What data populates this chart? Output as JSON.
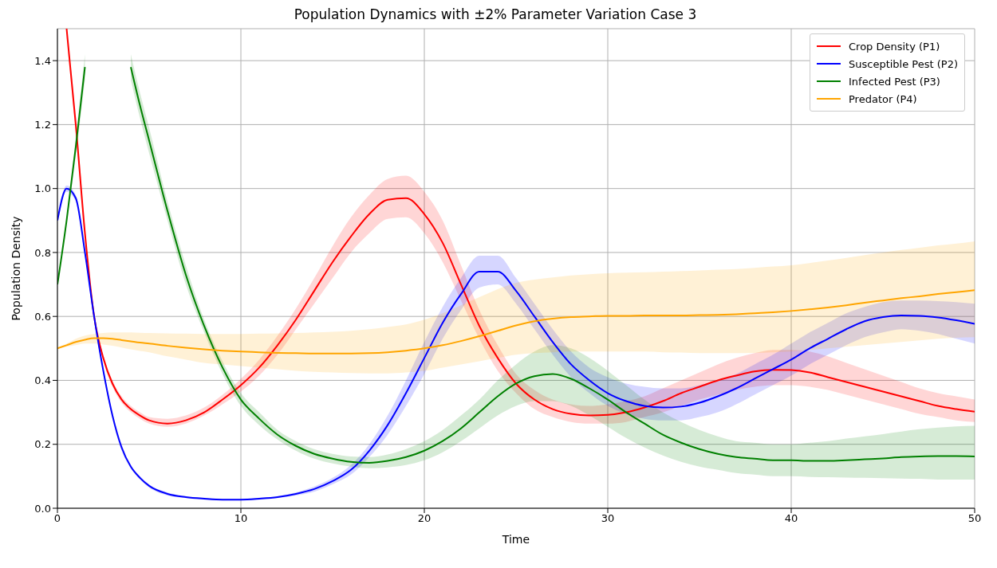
{
  "chart_data": {
    "type": "line",
    "title": "Population Dynamics with ±2% Parameter Variation Case 3",
    "xlabel": "Time",
    "ylabel": "Population Density",
    "x": [
      0,
      0.5,
      1,
      1.5,
      2,
      2.5,
      3,
      3.5,
      4,
      4.5,
      5,
      6,
      7,
      8,
      9,
      10,
      11,
      12,
      13,
      14,
      15,
      16,
      17,
      18,
      19,
      20,
      21,
      22,
      23,
      24,
      25,
      26,
      27,
      28,
      29,
      30,
      31,
      32,
      33,
      34,
      35,
      36,
      37,
      38,
      39,
      40,
      41,
      42,
      43,
      44,
      45,
      46,
      47,
      48,
      49,
      50
    ],
    "xlim": [
      0,
      50
    ],
    "xticks": [
      0,
      10,
      20,
      30,
      40,
      50
    ],
    "ylim": [
      0,
      1.5
    ],
    "yticks": [
      {
        "value": 0,
        "label": "0.0"
      },
      {
        "value": 0.2,
        "label": "0.2"
      },
      {
        "value": 0.4,
        "label": "0.4"
      },
      {
        "value": 0.6,
        "label": "0.6"
      },
      {
        "value": 0.8,
        "label": "0.8"
      },
      {
        "value": 1.0,
        "label": "1.0"
      },
      {
        "value": 1.2,
        "label": "1.2"
      },
      {
        "value": 1.4,
        "label": "1.4"
      }
    ],
    "grid": true,
    "legend": "top right",
    "marker": "none",
    "line_style": "solid",
    "series": [
      {
        "name": "Crop Density (P1)",
        "color": "#ff0000",
        "values": [
          null,
          1.5,
          1.2,
          0.86,
          0.6,
          0.47,
          0.39,
          0.34,
          0.31,
          0.29,
          0.275,
          0.265,
          0.275,
          0.3,
          0.34,
          0.385,
          0.44,
          0.51,
          0.59,
          0.68,
          0.77,
          0.85,
          0.92,
          0.965,
          0.97,
          0.92,
          0.83,
          0.7,
          0.57,
          0.47,
          0.39,
          0.34,
          0.31,
          0.295,
          0.29,
          0.292,
          0.3,
          0.315,
          0.335,
          0.36,
          0.38,
          0.4,
          0.415,
          0.428,
          0.433,
          0.432,
          0.425,
          0.41,
          0.395,
          0.38,
          0.365,
          0.35,
          0.335,
          0.32,
          0.31,
          0.302
        ],
        "lower": [
          null,
          1.47,
          1.17,
          0.84,
          0.59,
          0.46,
          0.38,
          0.33,
          0.3,
          0.28,
          0.265,
          0.255,
          0.265,
          0.29,
          0.325,
          0.365,
          0.415,
          0.48,
          0.56,
          0.64,
          0.72,
          0.8,
          0.86,
          0.905,
          0.91,
          0.86,
          0.77,
          0.65,
          0.53,
          0.43,
          0.36,
          0.31,
          0.285,
          0.27,
          0.265,
          0.265,
          0.27,
          0.285,
          0.3,
          0.32,
          0.34,
          0.355,
          0.37,
          0.38,
          0.385,
          0.385,
          0.38,
          0.37,
          0.355,
          0.34,
          0.325,
          0.31,
          0.295,
          0.285,
          0.275,
          0.27
        ],
        "upper": [
          null,
          1.5,
          1.23,
          0.88,
          0.61,
          0.48,
          0.4,
          0.35,
          0.32,
          0.3,
          0.285,
          0.28,
          0.29,
          0.315,
          0.355,
          0.405,
          0.465,
          0.54,
          0.625,
          0.72,
          0.82,
          0.91,
          0.98,
          1.03,
          1.04,
          0.99,
          0.9,
          0.76,
          0.62,
          0.51,
          0.42,
          0.37,
          0.34,
          0.325,
          0.32,
          0.325,
          0.335,
          0.35,
          0.375,
          0.4,
          0.425,
          0.45,
          0.47,
          0.485,
          0.495,
          0.495,
          0.49,
          0.475,
          0.455,
          0.435,
          0.415,
          0.395,
          0.375,
          0.36,
          0.35,
          0.34
        ]
      },
      {
        "name": "Susceptible Pest (P2)",
        "color": "#0000ff",
        "values": [
          0.9,
          1.0,
          0.97,
          0.8,
          0.6,
          0.43,
          0.29,
          0.19,
          0.13,
          0.095,
          0.07,
          0.045,
          0.035,
          0.03,
          0.027,
          0.027,
          0.03,
          0.035,
          0.045,
          0.06,
          0.085,
          0.12,
          0.18,
          0.26,
          0.36,
          0.47,
          0.58,
          0.67,
          0.74,
          0.74,
          0.68,
          0.6,
          0.52,
          0.45,
          0.4,
          0.36,
          0.335,
          0.32,
          0.315,
          0.318,
          0.33,
          0.35,
          0.375,
          0.405,
          0.435,
          0.465,
          0.5,
          0.53,
          0.56,
          0.585,
          0.598,
          0.603,
          0.602,
          0.597,
          0.588,
          0.577
        ],
        "lower": [
          0.9,
          0.99,
          0.96,
          0.79,
          0.59,
          0.42,
          0.28,
          0.18,
          0.125,
          0.09,
          0.065,
          0.04,
          0.032,
          0.027,
          0.025,
          0.025,
          0.027,
          0.032,
          0.04,
          0.052,
          0.075,
          0.105,
          0.16,
          0.23,
          0.32,
          0.42,
          0.53,
          0.62,
          0.69,
          0.7,
          0.64,
          0.56,
          0.48,
          0.41,
          0.36,
          0.32,
          0.295,
          0.28,
          0.275,
          0.275,
          0.285,
          0.3,
          0.325,
          0.355,
          0.385,
          0.415,
          0.45,
          0.48,
          0.51,
          0.535,
          0.55,
          0.56,
          0.555,
          0.545,
          0.53,
          0.515
        ],
        "upper": [
          0.9,
          1.01,
          0.98,
          0.81,
          0.61,
          0.44,
          0.3,
          0.2,
          0.135,
          0.1,
          0.075,
          0.05,
          0.038,
          0.033,
          0.03,
          0.03,
          0.033,
          0.038,
          0.05,
          0.068,
          0.095,
          0.135,
          0.2,
          0.29,
          0.4,
          0.52,
          0.63,
          0.72,
          0.79,
          0.79,
          0.72,
          0.64,
          0.56,
          0.49,
          0.44,
          0.41,
          0.39,
          0.38,
          0.375,
          0.375,
          0.385,
          0.4,
          0.42,
          0.45,
          0.48,
          0.515,
          0.55,
          0.58,
          0.61,
          0.63,
          0.645,
          0.65,
          0.65,
          0.648,
          0.645,
          0.64
        ]
      },
      {
        "name": "Infected Pest (P3)",
        "color": "#008000",
        "values": [
          0.7,
          0.9,
          1.13,
          1.38,
          null,
          null,
          null,
          null,
          1.38,
          1.26,
          1.15,
          0.93,
          0.73,
          0.57,
          0.44,
          0.34,
          0.28,
          0.23,
          0.195,
          0.17,
          0.155,
          0.145,
          0.142,
          0.148,
          0.16,
          0.18,
          0.21,
          0.25,
          0.3,
          0.35,
          0.39,
          0.413,
          0.42,
          0.405,
          0.375,
          0.34,
          0.3,
          0.265,
          0.23,
          0.205,
          0.185,
          0.17,
          0.16,
          0.155,
          0.15,
          0.15,
          0.148,
          0.148,
          0.15,
          0.153,
          0.156,
          0.16,
          0.162,
          0.163,
          0.163,
          0.162
        ],
        "lower": [
          0.7,
          0.89,
          1.1,
          1.34,
          null,
          null,
          null,
          null,
          1.34,
          1.22,
          1.11,
          0.9,
          0.7,
          0.55,
          0.42,
          0.32,
          0.26,
          0.215,
          0.18,
          0.155,
          0.14,
          0.13,
          0.125,
          0.128,
          0.135,
          0.15,
          0.175,
          0.21,
          0.25,
          0.29,
          0.32,
          0.335,
          0.335,
          0.32,
          0.29,
          0.255,
          0.22,
          0.19,
          0.165,
          0.145,
          0.13,
          0.12,
          0.11,
          0.105,
          0.1,
          0.1,
          0.098,
          0.097,
          0.096,
          0.095,
          0.094,
          0.093,
          0.092,
          0.09,
          0.09,
          0.09
        ],
        "upper": [
          0.7,
          0.91,
          1.16,
          1.42,
          null,
          null,
          null,
          null,
          1.42,
          1.3,
          1.19,
          0.96,
          0.76,
          0.59,
          0.46,
          0.36,
          0.3,
          0.245,
          0.21,
          0.185,
          0.17,
          0.162,
          0.16,
          0.168,
          0.185,
          0.21,
          0.245,
          0.29,
          0.34,
          0.4,
          0.45,
          0.49,
          0.51,
          0.5,
          0.47,
          0.43,
          0.385,
          0.34,
          0.3,
          0.27,
          0.245,
          0.225,
          0.21,
          0.205,
          0.2,
          0.2,
          0.205,
          0.21,
          0.218,
          0.225,
          0.232,
          0.24,
          0.247,
          0.252,
          0.256,
          0.258
        ]
      },
      {
        "name": "Predator (P4)",
        "color": "#ffa500",
        "values": [
          0.5,
          0.51,
          0.52,
          0.527,
          0.532,
          0.532,
          0.53,
          0.526,
          0.522,
          0.518,
          0.515,
          0.508,
          0.502,
          0.497,
          0.493,
          0.49,
          0.488,
          0.486,
          0.485,
          0.484,
          0.484,
          0.484,
          0.485,
          0.488,
          0.493,
          0.5,
          0.51,
          0.523,
          0.538,
          0.555,
          0.572,
          0.585,
          0.593,
          0.598,
          0.6,
          0.602,
          0.602,
          0.603,
          0.603,
          0.603,
          0.604,
          0.605,
          0.607,
          0.61,
          0.613,
          0.617,
          0.622,
          0.628,
          0.635,
          0.643,
          0.65,
          0.657,
          0.663,
          0.67,
          0.676,
          0.682
        ],
        "lower": [
          0.5,
          0.505,
          0.51,
          0.515,
          0.515,
          0.512,
          0.508,
          0.503,
          0.497,
          0.492,
          0.488,
          0.475,
          0.465,
          0.455,
          0.45,
          0.445,
          0.44,
          0.435,
          0.43,
          0.427,
          0.425,
          0.423,
          0.422,
          0.422,
          0.425,
          0.43,
          0.44,
          0.45,
          0.46,
          0.47,
          0.48,
          0.485,
          0.488,
          0.49,
          0.49,
          0.49,
          0.49,
          0.49,
          0.488,
          0.487,
          0.485,
          0.485,
          0.485,
          0.486,
          0.488,
          0.49,
          0.495,
          0.5,
          0.505,
          0.51,
          0.515,
          0.52,
          0.525,
          0.53,
          0.533,
          0.535
        ],
        "upper": [
          0.5,
          0.515,
          0.53,
          0.54,
          0.545,
          0.548,
          0.55,
          0.55,
          0.55,
          0.549,
          0.548,
          0.547,
          0.546,
          0.545,
          0.545,
          0.545,
          0.546,
          0.547,
          0.548,
          0.55,
          0.552,
          0.555,
          0.56,
          0.567,
          0.575,
          0.59,
          0.61,
          0.635,
          0.66,
          0.685,
          0.705,
          0.715,
          0.722,
          0.728,
          0.732,
          0.735,
          0.737,
          0.738,
          0.74,
          0.742,
          0.744,
          0.746,
          0.748,
          0.752,
          0.756,
          0.76,
          0.767,
          0.775,
          0.783,
          0.792,
          0.8,
          0.808,
          0.815,
          0.822,
          0.828,
          0.835
        ]
      }
    ]
  }
}
